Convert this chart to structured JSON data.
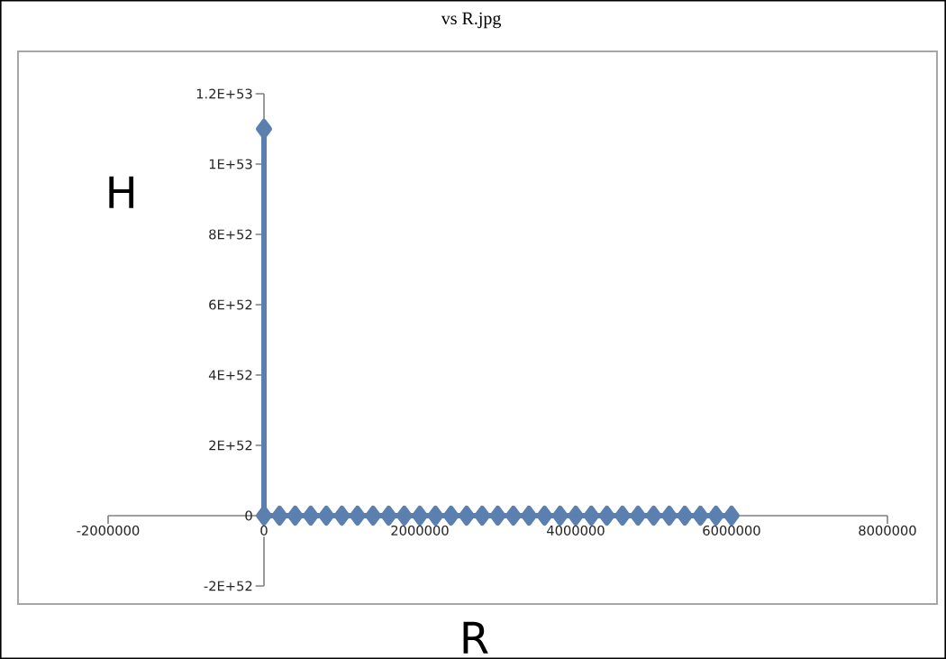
{
  "chart_data": {
    "type": "line",
    "title": "vs R.jpg",
    "xlabel": "R",
    "ylabel": "H",
    "x": [
      0,
      0,
      200000,
      400000,
      600000,
      800000,
      1000000,
      1200000,
      1400000,
      1600000,
      1800000,
      2000000,
      2200000,
      2400000,
      2600000,
      2800000,
      3000000,
      3200000,
      3400000,
      3600000,
      3800000,
      4000000,
      4200000,
      4400000,
      4600000,
      4800000,
      5000000,
      5200000,
      5400000,
      5600000,
      5800000,
      6000000
    ],
    "series": [
      {
        "color": "#5b7fae",
        "values": [
          1.1e+53,
          0,
          0,
          0,
          0,
          0,
          0,
          0,
          0,
          0,
          0,
          0,
          0,
          0,
          0,
          0,
          0,
          0,
          0,
          0,
          0,
          0,
          0,
          0,
          0,
          0,
          0,
          0,
          0,
          0,
          0,
          0
        ]
      }
    ],
    "xlim": [
      -2000000,
      8000000
    ],
    "xticks": [
      -2000000,
      0,
      2000000,
      4000000,
      6000000,
      8000000
    ],
    "ylim": [
      -2e+52,
      1.2e+53
    ],
    "yticks": [
      {
        "value": -2e+52,
        "label": "-2E+52"
      },
      {
        "value": 0,
        "label": "0"
      },
      {
        "value": 2e+52,
        "label": "2E+52"
      },
      {
        "value": 4e+52,
        "label": "4E+52"
      },
      {
        "value": 6e+52,
        "label": "6E+52"
      },
      {
        "value": 8e+52,
        "label": "8E+52"
      },
      {
        "value": 1e+53,
        "label": "1E+53"
      },
      {
        "value": 1.2e+53,
        "label": "1.2E+53"
      }
    ],
    "grid": false,
    "marker": "diamond",
    "line_style": "solid"
  }
}
